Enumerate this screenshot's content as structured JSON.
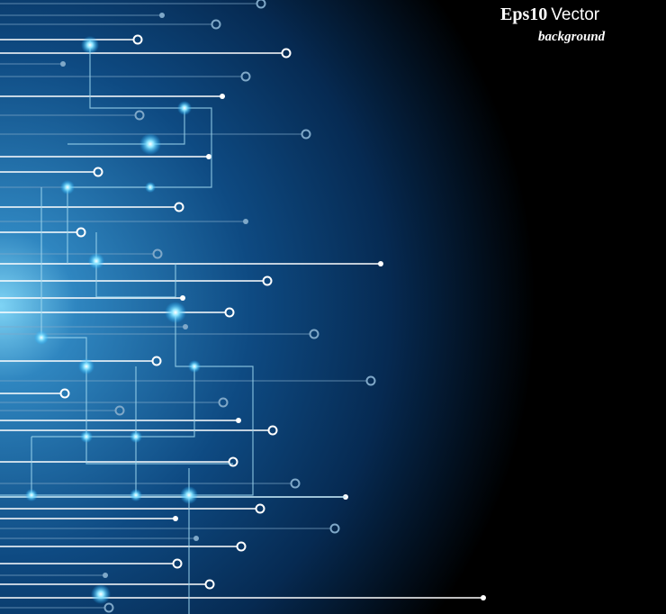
{
  "watermark": {
    "title_bold": "Eps10",
    "title_rest": "Vector",
    "subtitle": "background"
  }
}
